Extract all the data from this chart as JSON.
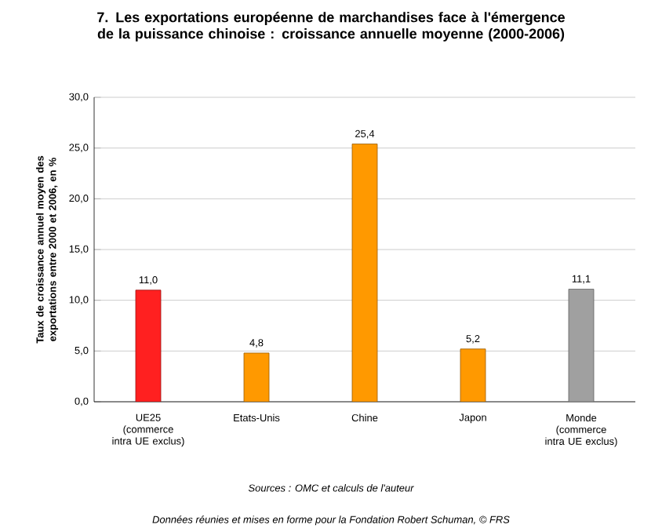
{
  "chart_data": {
    "type": "bar",
    "title": "7. Les exportations européenne de marchandises face à l'émergence de la puissance chinoise : croissance annuelle moyenne (2000-2006)",
    "ylabel": "Taux de croissance annuel moyen des exportations entre 2000 et 2006, en %",
    "categories": [
      "UE25 (commerce intra UE exclus)",
      "Etats-Unis",
      "Chine",
      "Japon",
      "Monde (commerce intra UE exclus)"
    ],
    "values": [
      11.0,
      4.8,
      25.4,
      5.2,
      11.1
    ],
    "value_labels": [
      "11,0",
      "4,8",
      "25,4",
      "5,2",
      "11,1"
    ],
    "colors": [
      "#ff2020",
      "#ff9900",
      "#ff9900",
      "#ff9900",
      "#a0a0a0"
    ],
    "ylim": [
      0,
      30
    ],
    "yticks": [
      {
        "value": 0,
        "label": "0,0"
      },
      {
        "value": 5,
        "label": "5,0"
      },
      {
        "value": 10,
        "label": "10,0"
      },
      {
        "value": 15,
        "label": "15,0"
      },
      {
        "value": 20,
        "label": "20,0"
      },
      {
        "value": 25,
        "label": "25,0"
      },
      {
        "value": 30,
        "label": "30,0"
      }
    ],
    "grid": "y",
    "annotations": [
      "Sources : OMC et calculs de l'auteur",
      "Données réunies et mises en forme pour la Fondation Robert Schuman, © FRS"
    ]
  }
}
